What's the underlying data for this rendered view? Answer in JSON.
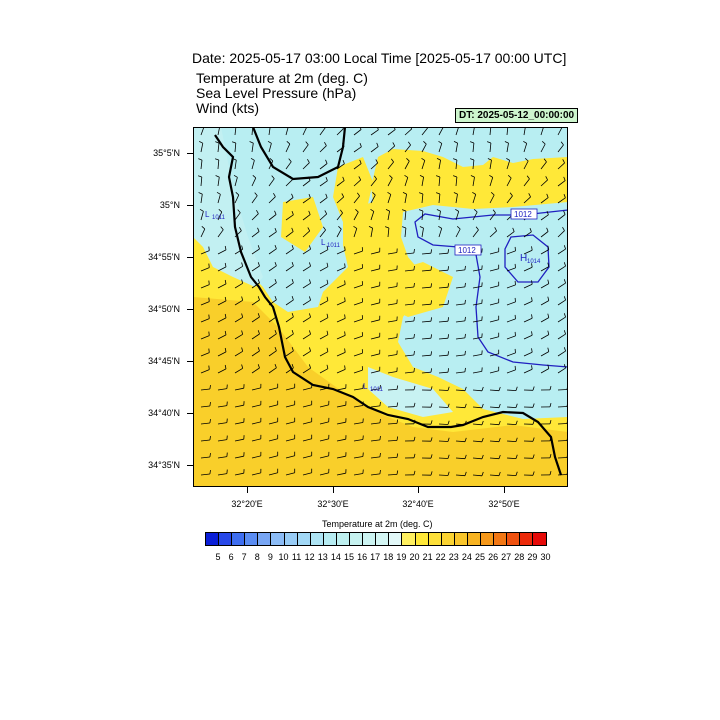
{
  "header": {
    "title": "Date: 2025-05-17  03:00 Local Time [2025-05-17  00:00 UTC]",
    "subtitles": [
      "Temperature at 2m   (deg. C)",
      "Sea Level Pressure   (hPa)",
      "Wind   (kts)"
    ],
    "dt_label": "DT: 2025-05-12_00:00:00"
  },
  "axes": {
    "lat_labels": [
      "35°5'N",
      "35°N",
      "34°55'N",
      "34°50'N",
      "34°45'N",
      "34°40'N",
      "34°35'N"
    ],
    "lon_labels": [
      "32°20'E",
      "32°30'E",
      "32°40'E",
      "32°50'E"
    ]
  },
  "map": {
    "pressure_labels": [
      "1011",
      "1011",
      "1011",
      "1012",
      "1012",
      "1014"
    ],
    "pressure_markers": [
      "L",
      "L",
      "L",
      "H"
    ],
    "colors": {
      "sea_cool": "#b8eef2",
      "land_warm": "#ffe838",
      "warm_strong": "#f9cf2a",
      "coast": "#000000",
      "isobar": "#2020c0"
    }
  },
  "colorbar": {
    "title": "Temperature at 2m  (deg. C)",
    "labels": [
      "5",
      "6",
      "7",
      "8",
      "9",
      "10",
      "11",
      "12",
      "13",
      "14",
      "15",
      "16",
      "17",
      "18",
      "19",
      "20",
      "21",
      "22",
      "23",
      "24",
      "25",
      "26",
      "27",
      "28",
      "29",
      "30"
    ],
    "colors": [
      "#0a1ed8",
      "#2848e8",
      "#3e6ef0",
      "#5a8cf2",
      "#78a6f4",
      "#8cbcf6",
      "#98ccf6",
      "#a2d8f6",
      "#aee4f4",
      "#b6ecf2",
      "#bef0f0",
      "#c6f2f0",
      "#ccf4f2",
      "#d4f6f4",
      "#e2f8f8",
      "#fff060",
      "#ffe838",
      "#fde03a",
      "#fbd332",
      "#f9c52a",
      "#f7b322",
      "#f5981a",
      "#f27714",
      "#f05210",
      "#ec2a0a",
      "#e60a08"
    ]
  }
}
